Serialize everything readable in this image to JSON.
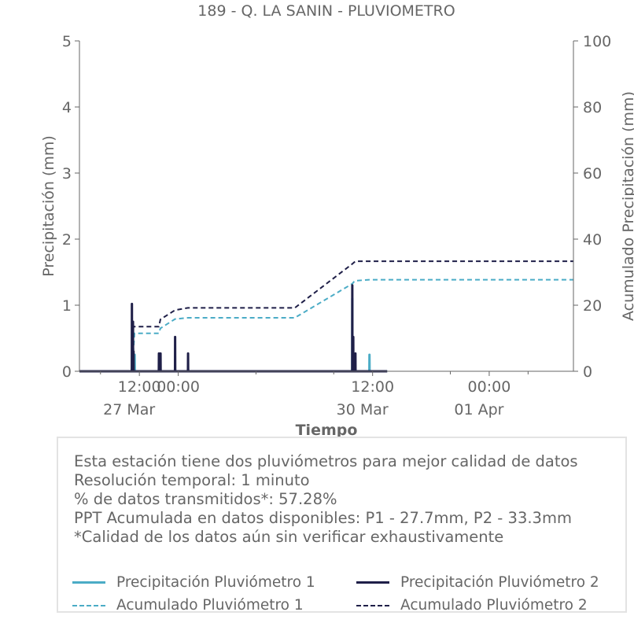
{
  "chart_data": {
    "type": "line",
    "title": "189 - Q. LA SANIN - PLUVIOMETRO",
    "xlabel": "Tiempo",
    "ylabel": "Precipitación (mm)",
    "y2label": "Acumulado Precipitación (mm)",
    "ylim": [
      0,
      5
    ],
    "y2lim": [
      0,
      100
    ],
    "yticks": [
      "0",
      "1",
      "2",
      "3",
      "4",
      "5"
    ],
    "y2ticks": [
      "0",
      "20",
      "40",
      "60",
      "80",
      "100"
    ],
    "xlim": [
      "2023-03-26 17:30",
      "2023-04-02 02:00"
    ],
    "xticks": [
      {
        "x": "2023-03-27 12:00",
        "label": "12:00",
        "sublabel": "27 Mar"
      },
      {
        "x": "2023-03-28 00:00",
        "label": "00:00",
        "sublabel": ""
      },
      {
        "x": "2023-03-30 12:00",
        "label": "12:00",
        "sublabel": "30 Mar"
      },
      {
        "x": "2023-04-01 00:00",
        "label": "00:00",
        "sublabel": "01 Apr"
      }
    ],
    "series": [
      {
        "name": "Precipitación Pluviómetro 1",
        "axis": "left",
        "style": "solid",
        "color": "#4bacc6",
        "x": [
          "2023-03-26 17:30",
          "2023-03-27 09:45",
          "2023-03-27 09:47",
          "2023-03-27 09:50",
          "2023-03-27 10:00",
          "2023-03-27 10:02",
          "2023-03-27 10:05",
          "2023-03-27 10:30",
          "2023-03-27 10:32",
          "2023-03-27 10:35",
          "2023-03-30 05:42",
          "2023-03-30 05:44",
          "2023-03-30 05:46",
          "2023-03-30 11:00",
          "2023-03-30 11:02",
          "2023-03-30 11:04",
          "2023-03-30 16:30"
        ],
        "y": [
          0,
          0,
          0.25,
          0,
          0,
          0.3,
          0,
          0,
          0.25,
          0,
          0,
          1.1,
          0,
          0,
          0.25,
          0,
          0
        ]
      },
      {
        "name": "Precipitación Pluviómetro 2",
        "axis": "left",
        "style": "solid",
        "color": "#1f1f48",
        "x": [
          "2023-03-26 17:30",
          "2023-03-27 09:40",
          "2023-03-27 09:42",
          "2023-03-27 09:44",
          "2023-03-27 10:00",
          "2023-03-27 10:02",
          "2023-03-27 10:04",
          "2023-03-27 10:10",
          "2023-03-27 10:12",
          "2023-03-27 10:14",
          "2023-03-27 18:00",
          "2023-03-27 18:02",
          "2023-03-27 18:04",
          "2023-03-27 18:30",
          "2023-03-27 18:32",
          "2023-03-27 18:34",
          "2023-03-27 23:00",
          "2023-03-27 23:02",
          "2023-03-27 23:04",
          "2023-03-28 03:00",
          "2023-03-28 03:02",
          "2023-03-28 03:04",
          "2023-03-30 05:42",
          "2023-03-30 05:44",
          "2023-03-30 05:46",
          "2023-03-30 06:00",
          "2023-03-30 06:02",
          "2023-03-30 06:04",
          "2023-03-30 06:40",
          "2023-03-30 06:42",
          "2023-03-30 06:44",
          "2023-03-30 16:30"
        ],
        "y": [
          0,
          0,
          1.02,
          0,
          0,
          0.75,
          0,
          0,
          0.3,
          0,
          0,
          0.27,
          0,
          0,
          0.27,
          0,
          0,
          0.52,
          0,
          0,
          0.27,
          0,
          0,
          1.3,
          0,
          0,
          0.52,
          0,
          0,
          0.27,
          0,
          0
        ]
      },
      {
        "name": "Acumulado Pluviómetro 1",
        "axis": "right",
        "style": "dashed",
        "color": "#4bacc6",
        "x": [
          "2023-03-26 17:30",
          "2023-03-27 09:45",
          "2023-03-27 10:30",
          "2023-03-27 18:00",
          "2023-03-27 18:30",
          "2023-03-27 23:00",
          "2023-03-28 03:00",
          "2023-03-29 12:00",
          "2023-03-30 05:44",
          "2023-03-30 06:30",
          "2023-03-30 11:00",
          "2023-04-02 02:00"
        ],
        "y": [
          0,
          0,
          11.5,
          11.5,
          13.0,
          15.8,
          16.2,
          16.2,
          26.5,
          27.4,
          27.7,
          27.7
        ]
      },
      {
        "name": "Acumulado Pluviómetro 2",
        "axis": "right",
        "style": "dashed",
        "color": "#1f1f48",
        "x": [
          "2023-03-26 17:30",
          "2023-03-27 09:40",
          "2023-03-27 10:10",
          "2023-03-27 18:00",
          "2023-03-27 18:30",
          "2023-03-27 23:00",
          "2023-03-28 03:00",
          "2023-03-29 12:00",
          "2023-03-30 05:44",
          "2023-03-30 06:40",
          "2023-04-02 02:00"
        ],
        "y": [
          0,
          0,
          13.5,
          13.5,
          15.7,
          18.5,
          19.2,
          19.2,
          32.5,
          33.3,
          33.3
        ]
      }
    ]
  },
  "info": {
    "lines": [
      "Esta estación tiene dos pluviómetros para mejor calidad de datos",
      "Resolución temporal: 1 minuto",
      "% de datos transmitidos*: 57.28%",
      "PPT Acumulada en datos disponibles: P1 - 27.7mm, P2 - 33.3mm",
      "*Calidad de los datos aún sin verificar exhaustivamente"
    ]
  },
  "legend": {
    "items": [
      {
        "label": "Precipitación Pluviómetro 1",
        "color": "#4bacc6",
        "style": "solid"
      },
      {
        "label": "Precipitación Pluviómetro 2",
        "color": "#1f1f48",
        "style": "solid"
      },
      {
        "label": "Acumulado Pluviómetro 1",
        "color": "#4bacc6",
        "style": "dashed"
      },
      {
        "label": "Acumulado Pluviómetro 2",
        "color": "#1f1f48",
        "style": "dashed"
      }
    ]
  }
}
